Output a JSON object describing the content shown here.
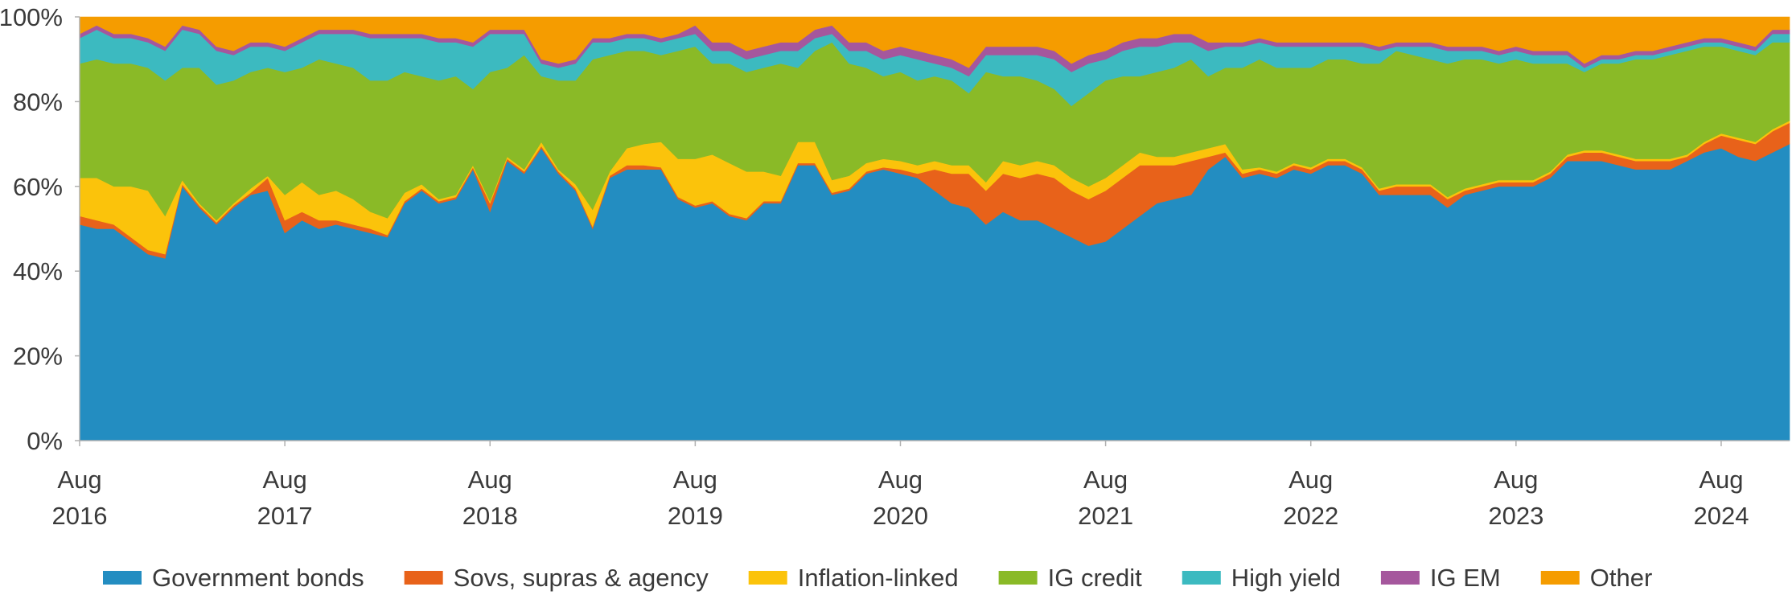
{
  "chart_data": {
    "type": "stacked_area",
    "x": [
      "2016-08",
      "2016-09",
      "2016-10",
      "2016-11",
      "2016-12",
      "2017-01",
      "2017-02",
      "2017-03",
      "2017-04",
      "2017-05",
      "2017-06",
      "2017-07",
      "2017-08",
      "2017-09",
      "2017-10",
      "2017-11",
      "2017-12",
      "2018-01",
      "2018-02",
      "2018-03",
      "2018-04",
      "2018-05",
      "2018-06",
      "2018-07",
      "2018-08",
      "2018-09",
      "2018-10",
      "2018-11",
      "2018-12",
      "2019-01",
      "2019-02",
      "2019-03",
      "2019-04",
      "2019-05",
      "2019-06",
      "2019-07",
      "2019-08",
      "2019-09",
      "2019-10",
      "2019-11",
      "2019-12",
      "2020-01",
      "2020-02",
      "2020-03",
      "2020-04",
      "2020-05",
      "2020-06",
      "2020-07",
      "2020-08",
      "2020-09",
      "2020-10",
      "2020-11",
      "2020-12",
      "2021-01",
      "2021-02",
      "2021-03",
      "2021-04",
      "2021-05",
      "2021-06",
      "2021-07",
      "2021-08",
      "2021-09",
      "2021-10",
      "2021-11",
      "2021-12",
      "2022-01",
      "2022-02",
      "2022-03",
      "2022-04",
      "2022-05",
      "2022-06",
      "2022-07",
      "2022-08",
      "2022-09",
      "2022-10",
      "2022-11",
      "2022-12",
      "2023-01",
      "2023-02",
      "2023-03",
      "2023-04",
      "2023-05",
      "2023-06",
      "2023-07",
      "2023-08",
      "2023-09",
      "2023-10",
      "2023-11",
      "2023-12",
      "2024-01",
      "2024-02",
      "2024-03",
      "2024-04",
      "2024-05",
      "2024-06",
      "2024-07",
      "2024-08",
      "2024-09",
      "2024-10",
      "2024-11",
      "2024-12"
    ],
    "xticks": [
      {
        "value": "2016-08",
        "label": "Aug 2016"
      },
      {
        "value": "2017-08",
        "label": "Aug 2017"
      },
      {
        "value": "2018-08",
        "label": "Aug 2018"
      },
      {
        "value": "2019-08",
        "label": "Aug 2019"
      },
      {
        "value": "2020-08",
        "label": "Aug 2020"
      },
      {
        "value": "2021-08",
        "label": "Aug 2021"
      },
      {
        "value": "2022-08",
        "label": "Aug 2022"
      },
      {
        "value": "2023-08",
        "label": "Aug 2023"
      },
      {
        "value": "2024-08",
        "label": "Aug 2024"
      }
    ],
    "ylim": [
      0,
      100
    ],
    "yticks": [
      {
        "value": 0,
        "label": "0%"
      },
      {
        "value": 20,
        "label": "20%"
      },
      {
        "value": 40,
        "label": "40%"
      },
      {
        "value": 60,
        "label": "60%"
      },
      {
        "value": 80,
        "label": "80%"
      },
      {
        "value": 100,
        "label": "100%"
      }
    ],
    "grid": false,
    "legend": "bottom",
    "series": [
      {
        "name": "Government bonds",
        "color": "#238dc1",
        "values": [
          51,
          50,
          50,
          47,
          44,
          43,
          60,
          55,
          51,
          55,
          58,
          59,
          49,
          52,
          50,
          51,
          50,
          49,
          48,
          56,
          59,
          56,
          57,
          64,
          54,
          66,
          63,
          69,
          63,
          59,
          50,
          62,
          64,
          64,
          64,
          57,
          55,
          56,
          53,
          52,
          56,
          56,
          65,
          65,
          58,
          59,
          63,
          64,
          63,
          62,
          59,
          56,
          55,
          51,
          54,
          52,
          52,
          50,
          48,
          46,
          47,
          50,
          53,
          56,
          57,
          58,
          64,
          67,
          62,
          63,
          62,
          64,
          63,
          65,
          65,
          63,
          58,
          58,
          58,
          58,
          55,
          58,
          59,
          60,
          60,
          60,
          62,
          66,
          66,
          66,
          65,
          64,
          64,
          64,
          66,
          68,
          69,
          67,
          66,
          68,
          70
        ]
      },
      {
        "name": "Sovs, supras & agency",
        "color": "#e8621a",
        "values": [
          2,
          2,
          1,
          1,
          1,
          1,
          0.5,
          0.5,
          0.5,
          0.5,
          0.5,
          3,
          3,
          2,
          2,
          1,
          1,
          1,
          0.5,
          0.5,
          0.5,
          0.5,
          0.5,
          0.5,
          2,
          0.5,
          0.5,
          0.5,
          0.5,
          0.5,
          0.5,
          0.5,
          1,
          1,
          0.5,
          0.5,
          0.5,
          0.5,
          0.5,
          0.5,
          0.5,
          0.5,
          0.5,
          0.5,
          0.5,
          0.5,
          0.5,
          0.5,
          1,
          1,
          5,
          7,
          8,
          8,
          9,
          10,
          11,
          12,
          11,
          11,
          12,
          12,
          12,
          9,
          8,
          8,
          3,
          1,
          1,
          1,
          1,
          1,
          1,
          1,
          1,
          1,
          1,
          2,
          2,
          2,
          2,
          1,
          1,
          1,
          1,
          1,
          1,
          1,
          2,
          2,
          2,
          2,
          2,
          2,
          1,
          2,
          3,
          4,
          4,
          5,
          5
        ]
      },
      {
        "name": "Inflation-linked",
        "color": "#fbc30b",
        "values": [
          9,
          10,
          9,
          12,
          14,
          9,
          1,
          0.5,
          0.5,
          0.5,
          1,
          0.5,
          6,
          7,
          6,
          7,
          6,
          4,
          4,
          2,
          1,
          0.5,
          0.5,
          0.5,
          0.5,
          0.5,
          0.5,
          1,
          0.5,
          1,
          4,
          1,
          4,
          5,
          6,
          9,
          11,
          11,
          12,
          11,
          7,
          6,
          5,
          5,
          3,
          3,
          2,
          2,
          2,
          2,
          2,
          2,
          2,
          2,
          3,
          3,
          3,
          3,
          3,
          3,
          3,
          3,
          3,
          2,
          2,
          2,
          2,
          2,
          1,
          0.5,
          0.5,
          0.5,
          0.5,
          0.5,
          0.5,
          0.5,
          0.5,
          0.5,
          0.5,
          0.5,
          0.5,
          0.5,
          0.5,
          0.5,
          0.5,
          0.5,
          0.5,
          0.5,
          0.5,
          0.5,
          0.5,
          0.5,
          0.5,
          0.5,
          0.5,
          0.5,
          0.5,
          0.5,
          0.5,
          0.5,
          0.5
        ]
      },
      {
        "name": "IG credit",
        "color": "#8aba27",
        "values": [
          27,
          28,
          29,
          29,
          29,
          32,
          26.5,
          32,
          32,
          29,
          27.5,
          25.5,
          29,
          27,
          32,
          30,
          31,
          31,
          32.5,
          28.5,
          25.5,
          28,
          28,
          18,
          30.5,
          21,
          27,
          15.5,
          21,
          24.5,
          35.5,
          27.5,
          23,
          22,
          20.5,
          25.5,
          26.5,
          21.5,
          23.5,
          23.5,
          24.5,
          26.5,
          17.5,
          21.5,
          32.5,
          26.5,
          22.5,
          19.5,
          21,
          20,
          20,
          20,
          17,
          26,
          20,
          21,
          19,
          18,
          17,
          22,
          23,
          21,
          18,
          20,
          21,
          22,
          17,
          18,
          24,
          25.5,
          24.5,
          22.5,
          23.5,
          23.5,
          23.5,
          24.5,
          29.5,
          31.5,
          30.5,
          29.5,
          31.5,
          30.5,
          29.5,
          27.5,
          28.5,
          27.5,
          25.5,
          21.5,
          18.5,
          20.5,
          21.5,
          23.5,
          23.5,
          24.5,
          24.5,
          22.5,
          20.5,
          20.5,
          20.5,
          20.5,
          18.5
        ]
      },
      {
        "name": "High yield",
        "color": "#3cbac0",
        "values": [
          6,
          7,
          6,
          6,
          6,
          7,
          9,
          8,
          8,
          6,
          6,
          5,
          5,
          6,
          6,
          7,
          8,
          10,
          10,
          8,
          9,
          9,
          8,
          10,
          9,
          8,
          5,
          3,
          3,
          4,
          4,
          3,
          3,
          3,
          3,
          3,
          3,
          3,
          3,
          3,
          3,
          3,
          4,
          3,
          2,
          3,
          4,
          4,
          4,
          5,
          3,
          3,
          4,
          4,
          5,
          5,
          6,
          7,
          8,
          7,
          5,
          6,
          7,
          6,
          6,
          4,
          6,
          5,
          5,
          4,
          5,
          5,
          5,
          3,
          3,
          4,
          3,
          1,
          2,
          3,
          3,
          2,
          2,
          2,
          2,
          2,
          2,
          2,
          1,
          1,
          1,
          1,
          1,
          1,
          1,
          1,
          1,
          1,
          1,
          2,
          2
        ]
      },
      {
        "name": "IG EM",
        "color": "#a5579d",
        "values": [
          1,
          1,
          1,
          1,
          1,
          1,
          1,
          1,
          1,
          1,
          1,
          1,
          1,
          1,
          1,
          1,
          1,
          1,
          1,
          1,
          1,
          1,
          1,
          1,
          1,
          1,
          1,
          1,
          1,
          1,
          1,
          1,
          1,
          1,
          1,
          1,
          2,
          2,
          2,
          2,
          2,
          2,
          2,
          2,
          2,
          2,
          2,
          2,
          2,
          2,
          2,
          2,
          2,
          2,
          2,
          2,
          2,
          2,
          2,
          2,
          2,
          2,
          2,
          2,
          2,
          2,
          2,
          1,
          1,
          1,
          1,
          1,
          1,
          1,
          1,
          1,
          1,
          1,
          1,
          1,
          1,
          1,
          1,
          1,
          1,
          1,
          1,
          1,
          1,
          1,
          1,
          1,
          1,
          1,
          1,
          1,
          1,
          1,
          1,
          1,
          1
        ]
      },
      {
        "name": "Other",
        "color": "#f59c00",
        "values": [
          4,
          2,
          4,
          4,
          5,
          7,
          2,
          3,
          7,
          8,
          6,
          6,
          7,
          5,
          3,
          3,
          3,
          4,
          4,
          4,
          4,
          5,
          5,
          6,
          3,
          3,
          3,
          10,
          11,
          10,
          5,
          5,
          4,
          4,
          5,
          4,
          2,
          6,
          6,
          8,
          7,
          6,
          6,
          3,
          2,
          6,
          6,
          8,
          7,
          8,
          9,
          10,
          12,
          7,
          7,
          7,
          7,
          8,
          11,
          9,
          8,
          6,
          5,
          5,
          4,
          4,
          6,
          6,
          6,
          5,
          6,
          6,
          6,
          6,
          6,
          6,
          7,
          6,
          6,
          6,
          7,
          7,
          7,
          8,
          7,
          8,
          8,
          8,
          11,
          9,
          9,
          8,
          8,
          7,
          6,
          5,
          5,
          6,
          7,
          3,
          3
        ]
      }
    ]
  }
}
